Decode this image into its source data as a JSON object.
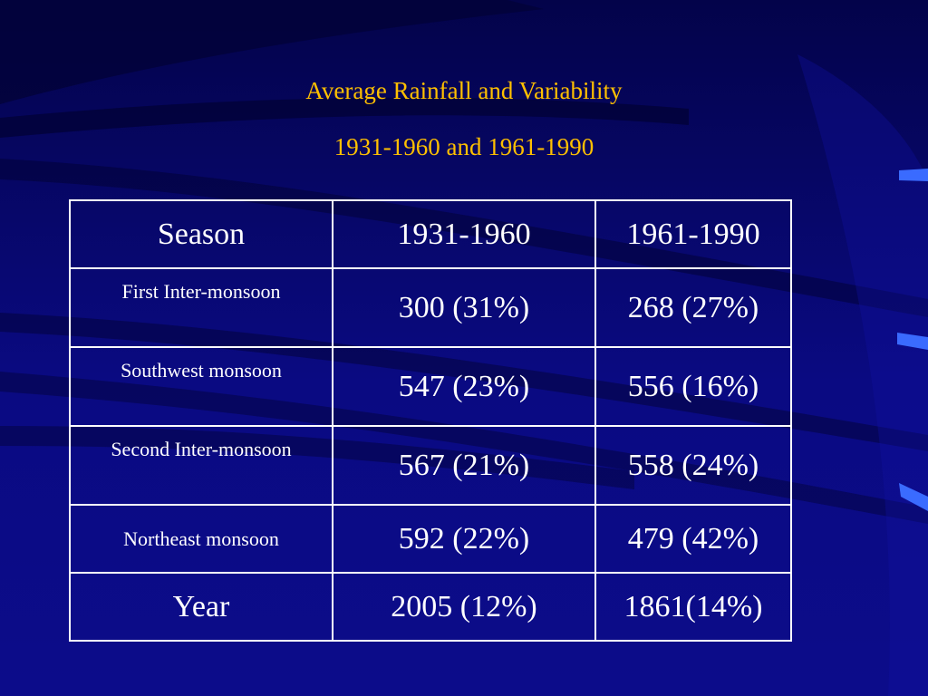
{
  "slide": {
    "title": "Average Rainfall and Variability",
    "subtitle": "1931-1960 and  1961-1990"
  },
  "table": {
    "headers": [
      "Season",
      "1931-1960",
      "1961-1990"
    ],
    "rows": [
      {
        "season": "First Inter-monsoon",
        "p1": "300 (31%)",
        "p2": "268 (27%)"
      },
      {
        "season": "Southwest monsoon",
        "p1": "547 (23%)",
        "p2": "556 (16%)"
      },
      {
        "season": "Second Inter-monsoon",
        "p1": "567 (21%)",
        "p2": "558 (24%)"
      },
      {
        "season": "Northeast monsoon",
        "p1": "592 (22%)",
        "p2": "479 (42%)"
      },
      {
        "season": "Year",
        "p1": "2005 (12%)",
        "p2": "1861(14%)"
      }
    ]
  },
  "colors": {
    "background": "#06066e",
    "title": "#ffc000",
    "text": "#ffffff",
    "accent_marks": "#3a6bff"
  }
}
